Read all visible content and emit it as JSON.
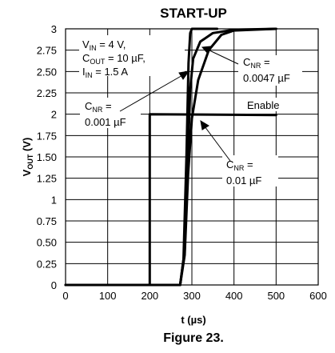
{
  "chart_data": {
    "type": "line",
    "title": "START-UP",
    "xlabel": "t (µs)",
    "ylabel_parts": {
      "main": "V",
      "sub": "OUT",
      "unit": " (V)"
    },
    "xlim": [
      0,
      600
    ],
    "ylim": [
      0,
      3
    ],
    "x_ticks": [
      0,
      100,
      200,
      300,
      400,
      500,
      600
    ],
    "y_ticks": [
      0,
      0.25,
      0.5,
      0.75,
      1,
      1.25,
      1.5,
      1.75,
      2,
      2.25,
      2.5,
      2.75,
      3
    ],
    "y_tick_labels": [
      "0",
      "0.25",
      "0.50",
      "0.75",
      "1",
      "1.25",
      "1.50",
      "1.75",
      "2",
      "2.25",
      "2.50",
      "2.75",
      "3"
    ],
    "grid": true,
    "series": [
      {
        "name": "Enable",
        "color": "#000000",
        "points": [
          [
            0,
            0
          ],
          [
            200,
            0
          ],
          [
            200,
            2
          ],
          [
            500,
            1.99
          ]
        ]
      },
      {
        "name": "CNR = 0.001 µF",
        "color": "#000000",
        "points": [
          [
            0,
            0
          ],
          [
            272,
            0
          ],
          [
            280,
            0.3
          ],
          [
            287,
            1.5
          ],
          [
            292,
            2.6
          ],
          [
            296,
            2.95
          ],
          [
            300,
            3
          ],
          [
            360,
            3
          ]
        ]
      },
      {
        "name": "CNR = 0.0047 µF",
        "color": "#000000",
        "points": [
          [
            0,
            0
          ],
          [
            272,
            0
          ],
          [
            283,
            0.4
          ],
          [
            290,
            1.4
          ],
          [
            296,
            2.3
          ],
          [
            303,
            2.65
          ],
          [
            320,
            2.85
          ],
          [
            350,
            2.95
          ],
          [
            400,
            2.99
          ],
          [
            500,
            3
          ]
        ]
      },
      {
        "name": "CNR = 0.01 µF",
        "color": "#000000",
        "points": [
          [
            0,
            0
          ],
          [
            272,
            0
          ],
          [
            283,
            0.35
          ],
          [
            291,
            1.3
          ],
          [
            300,
            1.95
          ],
          [
            315,
            2.4
          ],
          [
            340,
            2.75
          ],
          [
            370,
            2.93
          ],
          [
            400,
            2.98
          ],
          [
            500,
            3
          ]
        ]
      }
    ],
    "annotations": {
      "conditions": [
        {
          "main": "V",
          "sub": "IN",
          "rest": " = 4 V,"
        },
        {
          "main": "C",
          "sub": "OUT",
          "rest": " = 10 µF,"
        },
        {
          "main": "I",
          "sub": "IN",
          "rest": " = 1.5 A"
        }
      ],
      "cnr_001": {
        "main": "C",
        "sub": "NR",
        "rest": " =",
        "value": "0.001 µF"
      },
      "cnr_0047": {
        "main": "C",
        "sub": "NR",
        "rest": " =",
        "value": "0.0047 µF"
      },
      "cnr_01": {
        "main": "C",
        "sub": "NR",
        "rest": " =",
        "value": "0.01 µF"
      },
      "enable": "Enable"
    }
  },
  "caption": "Figure 23."
}
